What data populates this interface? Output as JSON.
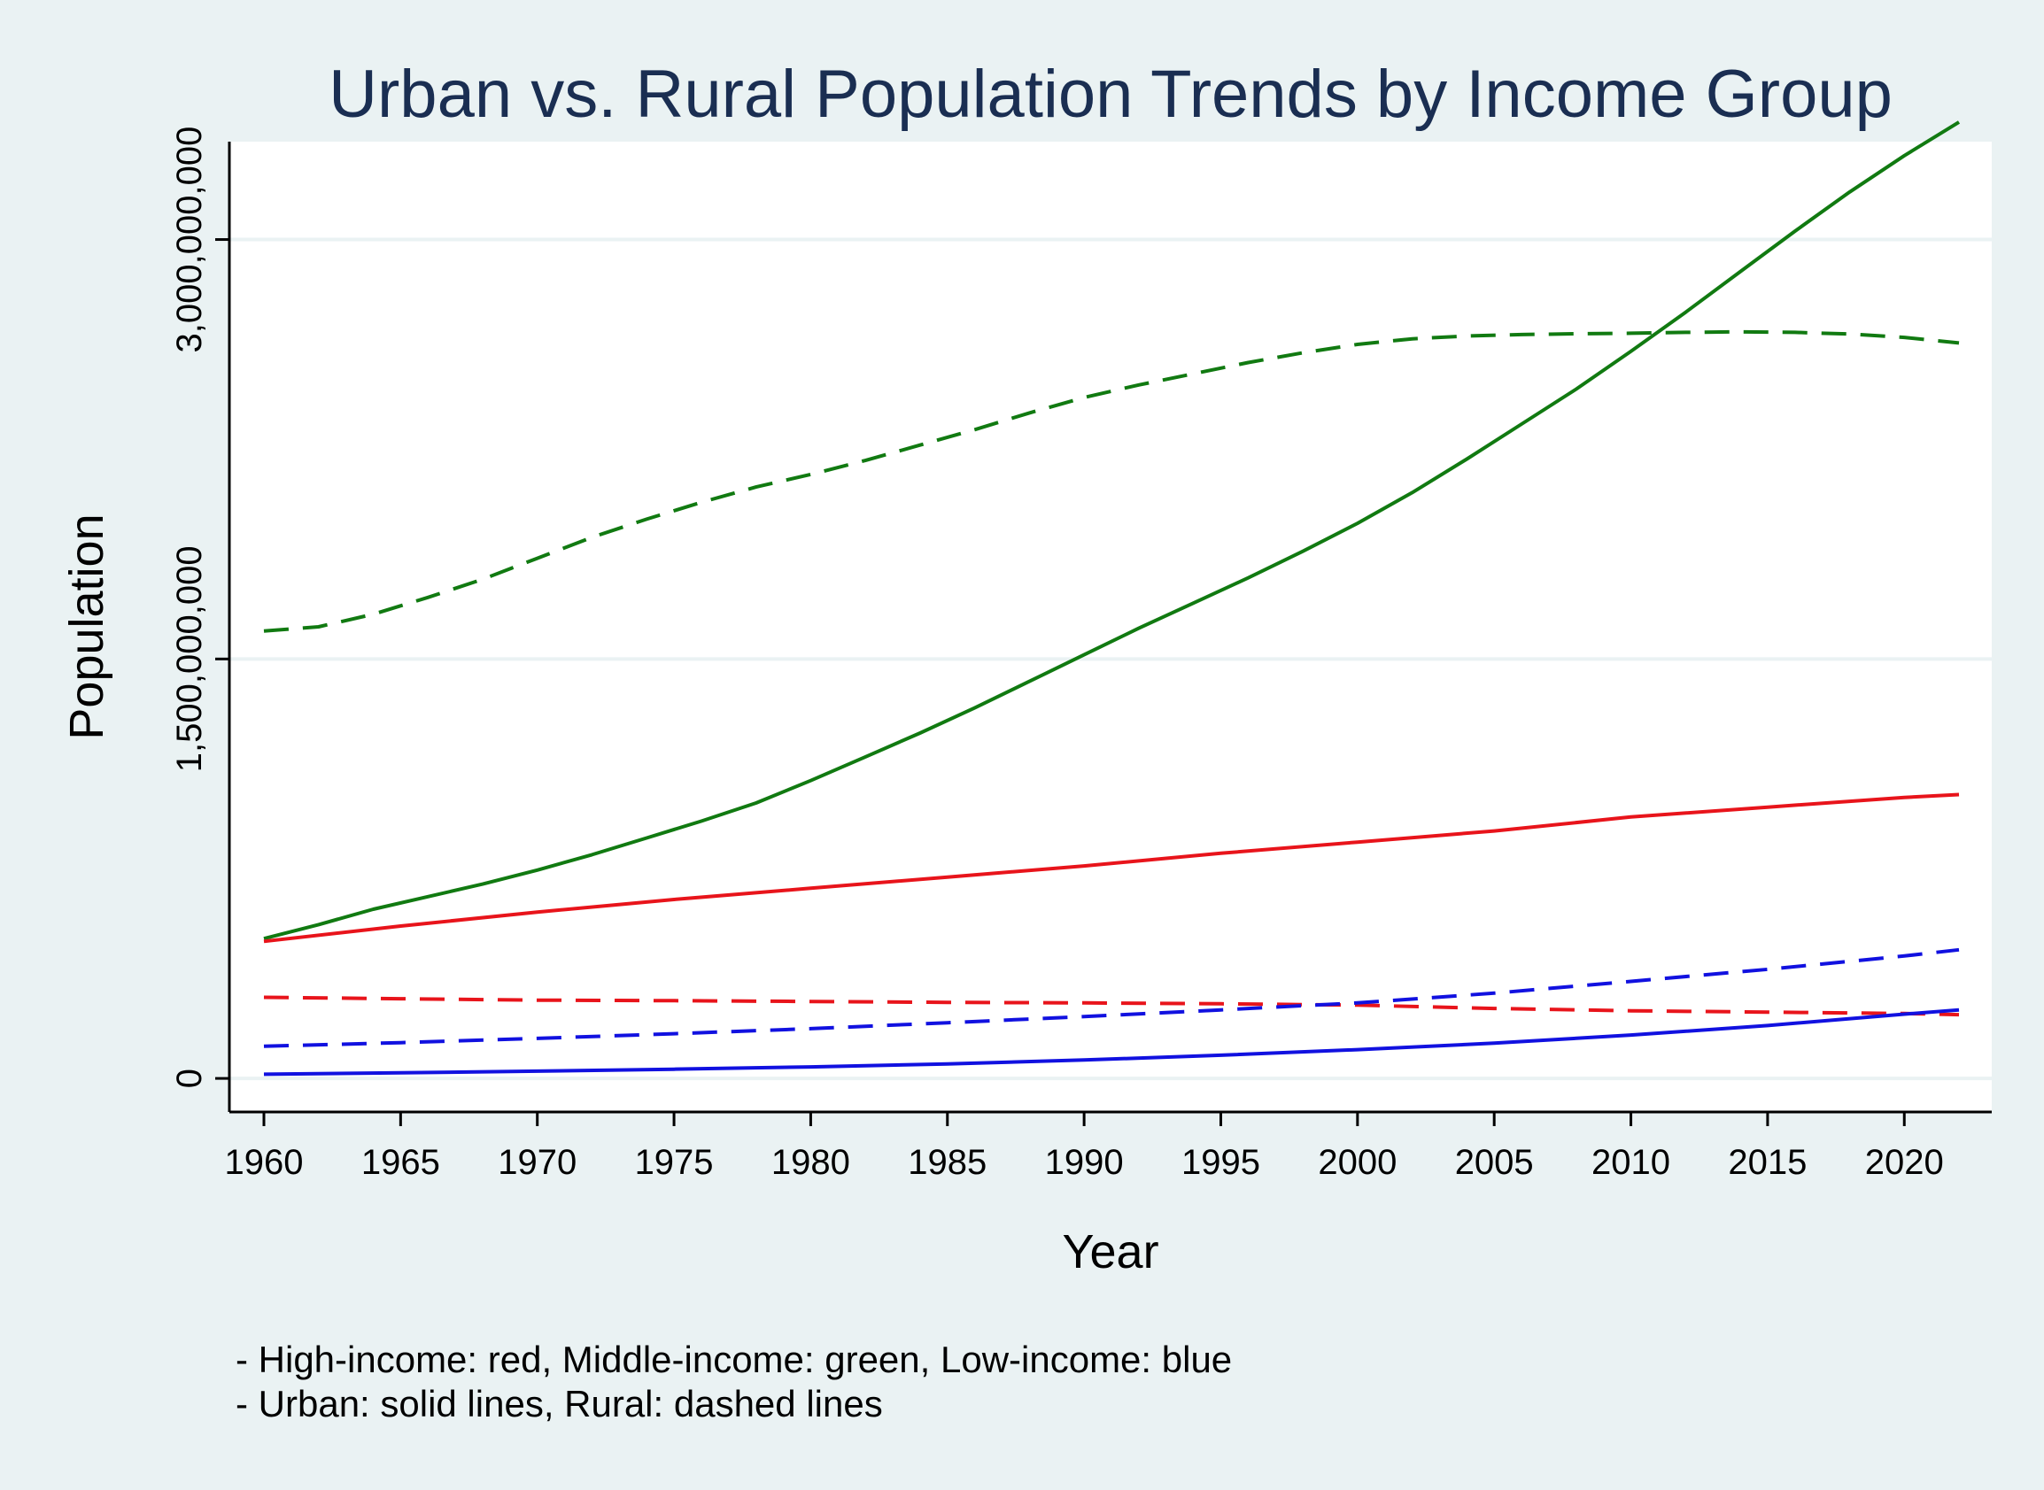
{
  "chart_data": {
    "type": "line",
    "title": "Urban vs. Rural Population Trends by Income Group",
    "xlabel": "Year",
    "ylabel": "Population",
    "xlim": [
      1960,
      2022
    ],
    "ylim": [
      -120000000,
      3350000000
    ],
    "x_ticks": [
      1960,
      1965,
      1970,
      1975,
      1980,
      1985,
      1990,
      1995,
      2000,
      2005,
      2010,
      2015,
      2020
    ],
    "y_ticks": [
      {
        "value": 0,
        "label": "0"
      },
      {
        "value": 1500000000,
        "label": "1,500,000,000"
      },
      {
        "value": 3000000000,
        "label": "3,000,000,000"
      }
    ],
    "grid": true,
    "notes": [
      "- High-income: red, Middle-income: green, Low-income: blue",
      "- Urban: solid lines, Rural: dashed lines"
    ],
    "series": [
      {
        "name": "Middle-income urban",
        "color": "#117a11",
        "dash": false,
        "x": [
          1960,
          1962,
          1964,
          1966,
          1968,
          1970,
          1972,
          1974,
          1976,
          1978,
          1980,
          1982,
          1984,
          1986,
          1988,
          1990,
          1992,
          1994,
          1996,
          1998,
          2000,
          2002,
          2004,
          2006,
          2008,
          2010,
          2012,
          2014,
          2016,
          2018,
          2020,
          2022
        ],
        "y": [
          500000000,
          550000000,
          605000000,
          650000000,
          695000000,
          745000000,
          800000000,
          860000000,
          920000000,
          985000000,
          1065000000,
          1150000000,
          1235000000,
          1325000000,
          1420000000,
          1515000000,
          1610000000,
          1700000000,
          1790000000,
          1885000000,
          1985000000,
          2095000000,
          2215000000,
          2340000000,
          2465000000,
          2600000000,
          2740000000,
          2885000000,
          3030000000,
          3170000000,
          3300000000,
          3420000000
        ]
      },
      {
        "name": "Middle-income rural",
        "color": "#117a11",
        "dash": true,
        "x": [
          1960,
          1962,
          1964,
          1966,
          1968,
          1970,
          1972,
          1974,
          1976,
          1978,
          1980,
          1982,
          1984,
          1986,
          1988,
          1990,
          1992,
          1994,
          1996,
          1998,
          2000,
          2002,
          2004,
          2006,
          2008,
          2010,
          2012,
          2014,
          2016,
          2018,
          2020,
          2022
        ],
        "y": [
          1600000000,
          1615000000,
          1660000000,
          1720000000,
          1785000000,
          1860000000,
          1935000000,
          2000000000,
          2060000000,
          2115000000,
          2160000000,
          2210000000,
          2265000000,
          2320000000,
          2380000000,
          2435000000,
          2480000000,
          2520000000,
          2560000000,
          2595000000,
          2625000000,
          2645000000,
          2655000000,
          2660000000,
          2663000000,
          2665000000,
          2668000000,
          2670000000,
          2668000000,
          2662000000,
          2650000000,
          2630000000
        ]
      },
      {
        "name": "High-income urban",
        "color": "#e8141b",
        "dash": false,
        "x": [
          1960,
          1965,
          1970,
          1975,
          1980,
          1985,
          1990,
          1995,
          2000,
          2005,
          2010,
          2015,
          2020,
          2022
        ],
        "y": [
          490000000,
          545000000,
          595000000,
          640000000,
          680000000,
          720000000,
          760000000,
          805000000,
          845000000,
          885000000,
          935000000,
          970000000,
          1005000000,
          1015000000
        ]
      },
      {
        "name": "High-income rural",
        "color": "#e8141b",
        "dash": true,
        "x": [
          1960,
          1965,
          1970,
          1975,
          1980,
          1985,
          1990,
          1995,
          2000,
          2005,
          2010,
          2015,
          2020,
          2022
        ],
        "y": [
          290000000,
          285000000,
          280000000,
          278000000,
          275000000,
          272000000,
          270000000,
          267000000,
          262000000,
          250000000,
          242000000,
          237000000,
          232000000,
          228000000
        ]
      },
      {
        "name": "Low-income urban",
        "color": "#1111e0",
        "dash": false,
        "x": [
          1960,
          1965,
          1970,
          1975,
          1980,
          1985,
          1990,
          1995,
          2000,
          2005,
          2010,
          2015,
          2020,
          2022
        ],
        "y": [
          15000000,
          20000000,
          26000000,
          33000000,
          41000000,
          52000000,
          66000000,
          83000000,
          103000000,
          126000000,
          155000000,
          189000000,
          230000000,
          245000000
        ]
      },
      {
        "name": "Low-income rural",
        "color": "#1111e0",
        "dash": true,
        "x": [
          1960,
          1965,
          1970,
          1975,
          1980,
          1985,
          1990,
          1995,
          2000,
          2005,
          2010,
          2015,
          2020,
          2022
        ],
        "y": [
          115000000,
          128000000,
          143000000,
          160000000,
          178000000,
          199000000,
          221000000,
          245000000,
          270000000,
          305000000,
          347000000,
          390000000,
          438000000,
          460000000
        ]
      }
    ]
  }
}
